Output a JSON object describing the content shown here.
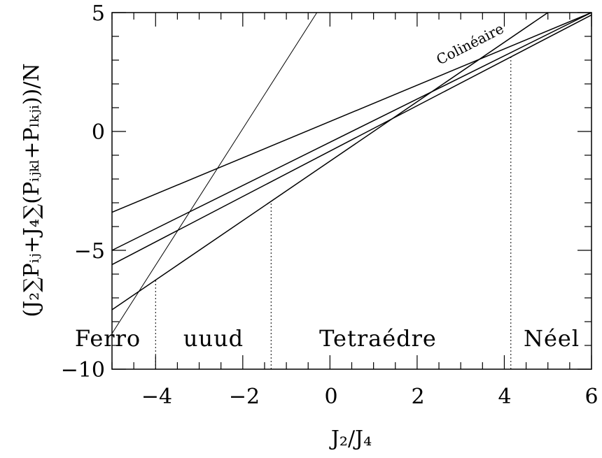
{
  "chart_data": {
    "type": "line",
    "xlabel": "J₂/J₄",
    "ylabel": "(J₂∑Pᵢⱼ+J₄∑(Pᵢⱼₖₗ+Pₗₖⱼᵢ))/N",
    "xlim": [
      -5,
      6
    ],
    "ylim": [
      -10,
      5
    ],
    "x_ticks": [
      "−4",
      "−2",
      "0",
      "2",
      "4",
      "6"
    ],
    "y_ticks": [
      "−10",
      "−5",
      "0",
      "5"
    ],
    "series": [
      {
        "x": [
          -5,
          -0.3
        ],
        "y": [
          -8.5,
          5.0
        ]
      },
      {
        "x": [
          -5,
          5.0
        ],
        "y": [
          -7.5,
          5.0
        ]
      },
      {
        "x": [
          -5,
          6
        ],
        "y": [
          -5.0,
          5.0
        ]
      },
      {
        "x": [
          -5,
          6
        ],
        "y": [
          -5.6,
          4.9
        ]
      },
      {
        "x": [
          -5,
          6
        ],
        "y": [
          -3.4,
          5.0
        ]
      }
    ],
    "boundaries": [
      -4.0,
      -1.35,
      4.15
    ],
    "region_labels": [
      "Ferro",
      "uuud",
      "Tetraédre",
      "Néel"
    ],
    "annotation": "Colinéaire",
    "grid": false
  }
}
